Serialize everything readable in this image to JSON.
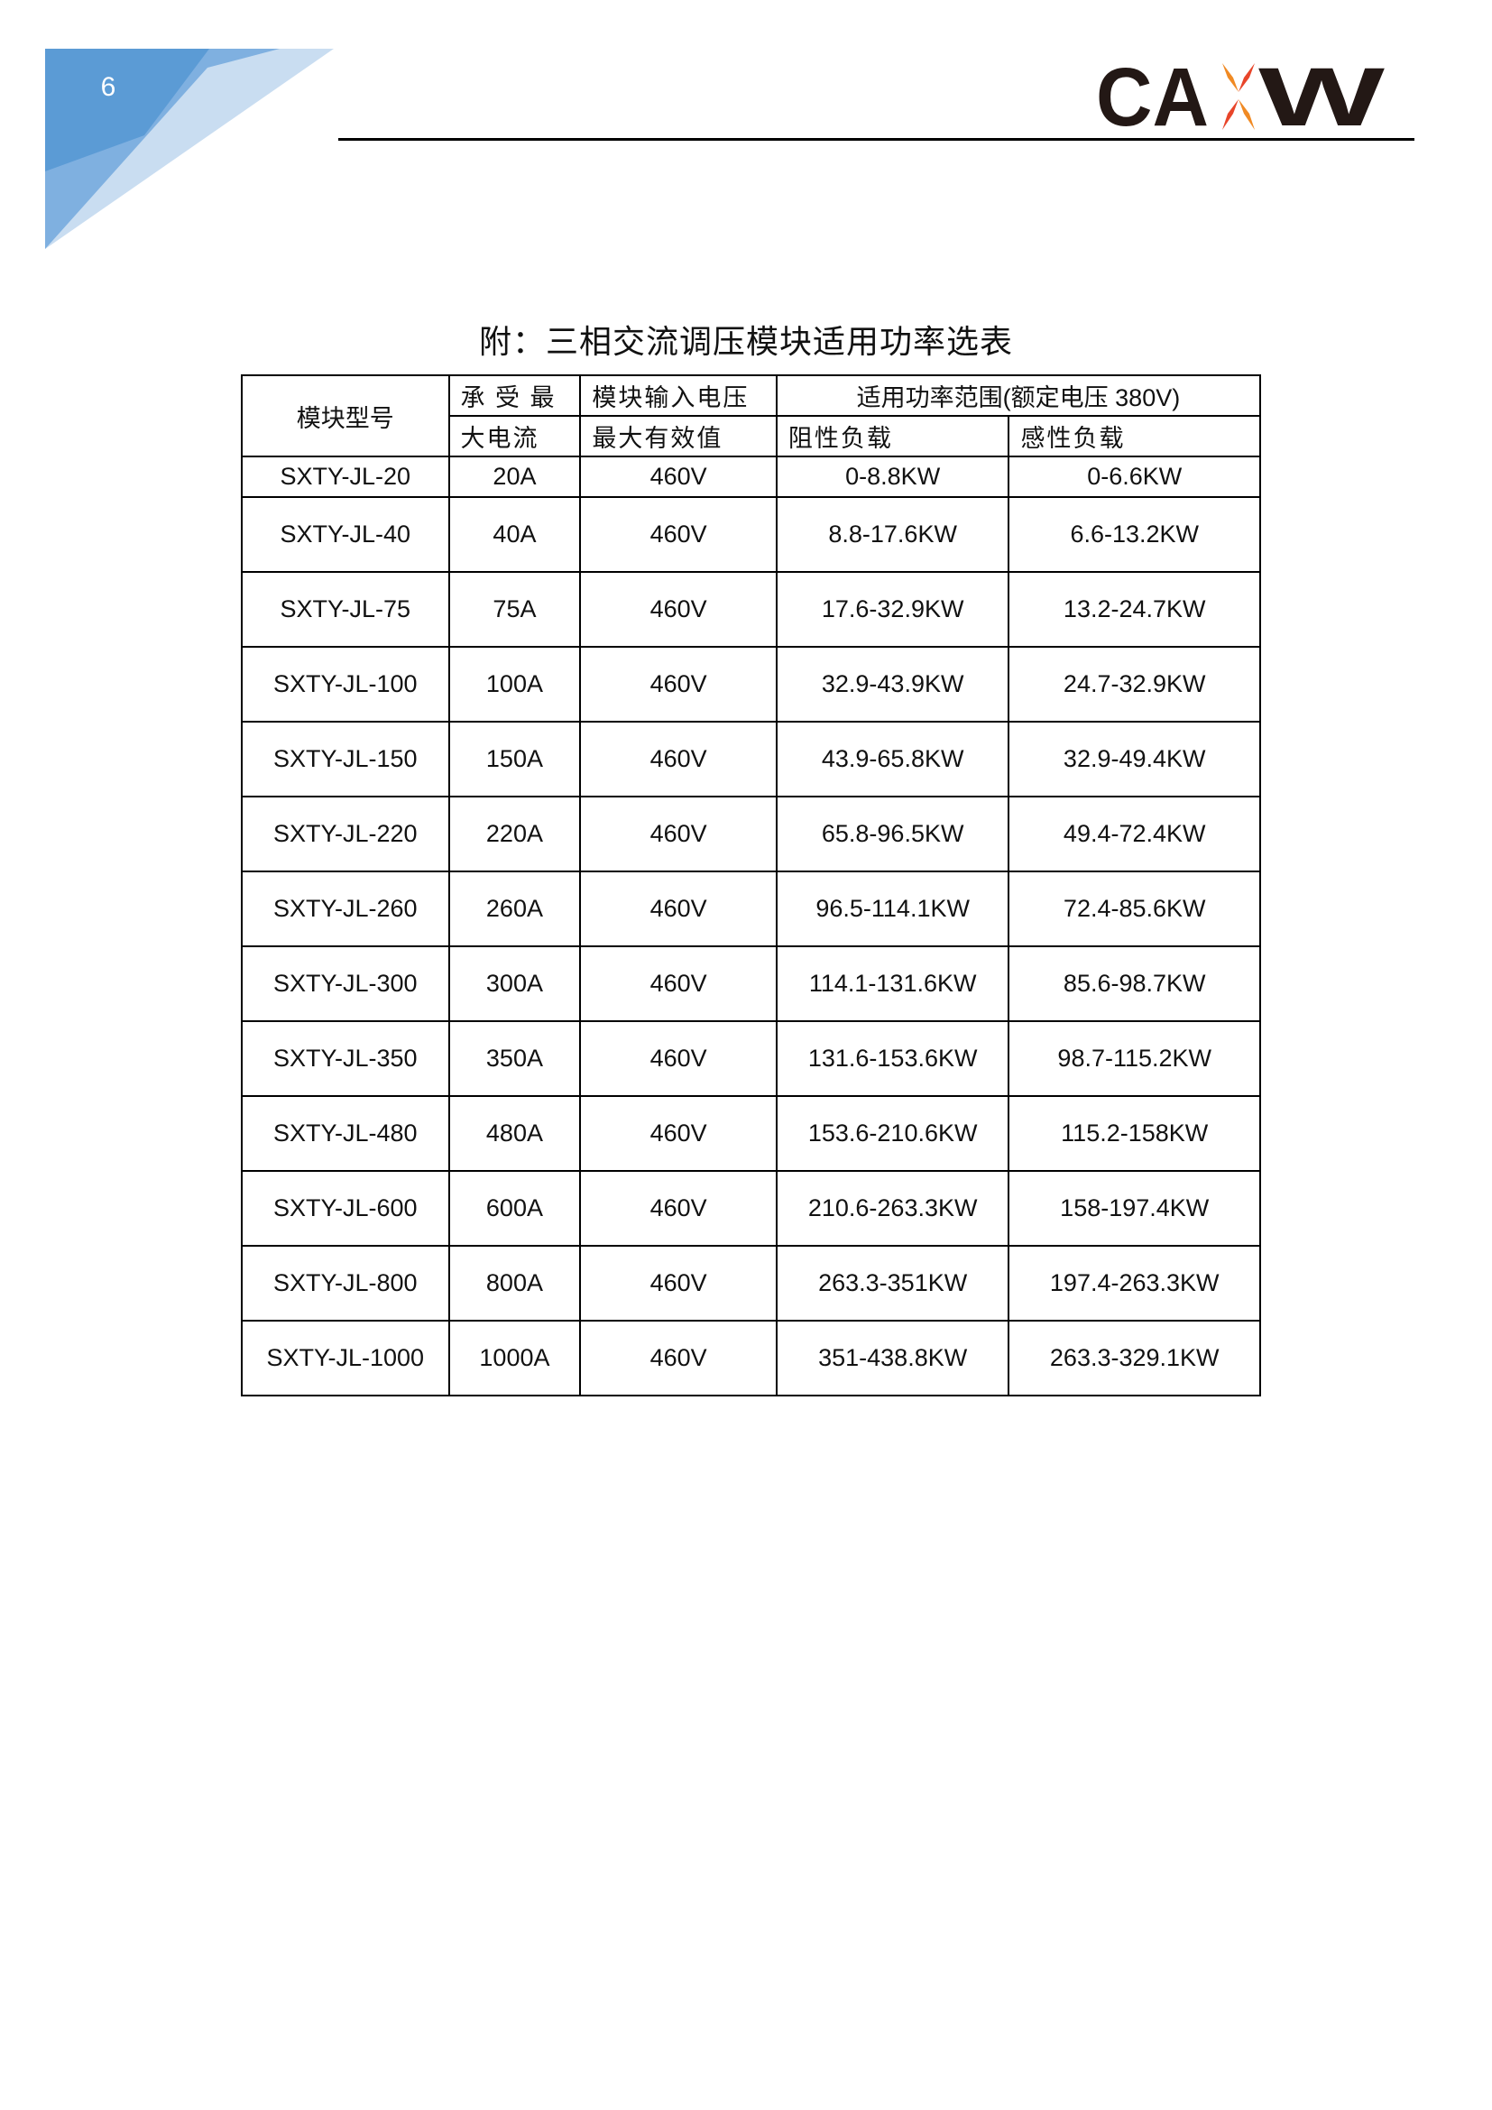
{
  "header": {
    "page_number": "6",
    "logo_text": "CAXW",
    "colors": {
      "blue_dark": "#5b9bd5",
      "blue_mid": "#7fb0e0",
      "blue_light": "#c9ddf1",
      "logo_orange": "#f08a24",
      "logo_red": "#e8452a"
    }
  },
  "title": "附：三相交流调压模块适用功率选表",
  "table": {
    "headers": {
      "model": "模块型号",
      "current_line1": "承 受 最",
      "current_line2": "大电流",
      "voltage_line1": "模块输入电压",
      "voltage_line2": "最大有效值",
      "power_range": "适用功率范围(额定电压 380V)",
      "resistive": "阻性负载",
      "inductive": "感性负载"
    },
    "rows": [
      [
        "SXTY-JL-20",
        "20A",
        "460V",
        "0-8.8KW",
        "0-6.6KW"
      ],
      [
        "SXTY-JL-40",
        "40A",
        "460V",
        "8.8-17.6KW",
        "6.6-13.2KW"
      ],
      [
        "SXTY-JL-75",
        "75A",
        "460V",
        "17.6-32.9KW",
        "13.2-24.7KW"
      ],
      [
        "SXTY-JL-100",
        "100A",
        "460V",
        "32.9-43.9KW",
        "24.7-32.9KW"
      ],
      [
        "SXTY-JL-150",
        "150A",
        "460V",
        "43.9-65.8KW",
        "32.9-49.4KW"
      ],
      [
        "SXTY-JL-220",
        "220A",
        "460V",
        "65.8-96.5KW",
        "49.4-72.4KW"
      ],
      [
        "SXTY-JL-260",
        "260A",
        "460V",
        "96.5-114.1KW",
        "72.4-85.6KW"
      ],
      [
        "SXTY-JL-300",
        "300A",
        "460V",
        "114.1-131.6KW",
        "85.6-98.7KW"
      ],
      [
        "SXTY-JL-350",
        "350A",
        "460V",
        "131.6-153.6KW",
        "98.7-115.2KW"
      ],
      [
        "SXTY-JL-480",
        "480A",
        "460V",
        "153.6-210.6KW",
        "115.2-158KW"
      ],
      [
        "SXTY-JL-600",
        "600A",
        "460V",
        "210.6-263.3KW",
        "158-197.4KW"
      ],
      [
        "SXTY-JL-800",
        "800A",
        "460V",
        "263.3-351KW",
        "197.4-263.3KW"
      ],
      [
        "SXTY-JL-1000",
        "1000A",
        "460V",
        "351-438.8KW",
        "263.3-329.1KW"
      ]
    ]
  }
}
